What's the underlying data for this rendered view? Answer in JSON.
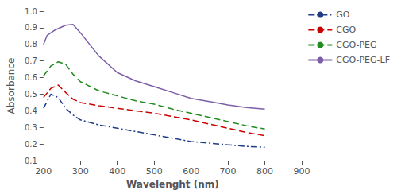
{
  "chart_data": {
    "type": "line",
    "xlabel": "Wavelenght (nm)",
    "ylabel": "Absorbance",
    "xlim": [
      200,
      900
    ],
    "ylim": [
      0.1,
      1.0
    ],
    "xticks": [
      200,
      300,
      400,
      500,
      600,
      700,
      800,
      900
    ],
    "yticks": [
      0.1,
      0.2,
      0.3,
      0.4,
      0.5,
      0.6,
      0.7,
      0.8,
      0.9,
      {
        "value": 1,
        "label": "1.0"
      }
    ],
    "grid": false,
    "legend": "upper right",
    "series": [
      {
        "name": "GO",
        "color": "#1f3c88",
        "line_style": "dashdot",
        "x": [
          200,
          220,
          240,
          260,
          280,
          300,
          350,
          400,
          450,
          500,
          550,
          600,
          650,
          700,
          750,
          800
        ],
        "values": [
          0.415,
          0.5,
          0.48,
          0.415,
          0.375,
          0.345,
          0.315,
          0.295,
          0.275,
          0.255,
          0.235,
          0.215,
          0.205,
          0.195,
          0.185,
          0.18
        ]
      },
      {
        "name": "CGO",
        "color": "#cc0000",
        "line_style": "dashed",
        "x": [
          200,
          220,
          240,
          260,
          280,
          300,
          350,
          400,
          450,
          500,
          550,
          600,
          650,
          700,
          750,
          800
        ],
        "values": [
          0.48,
          0.535,
          0.555,
          0.51,
          0.47,
          0.45,
          0.43,
          0.415,
          0.4,
          0.385,
          0.365,
          0.345,
          0.32,
          0.295,
          0.27,
          0.25
        ]
      },
      {
        "name": "CGO-PEG",
        "color": "#228B22",
        "line_style": "dashed",
        "x": [
          200,
          220,
          240,
          260,
          280,
          300,
          350,
          400,
          450,
          500,
          550,
          600,
          650,
          700,
          750,
          800
        ],
        "values": [
          0.61,
          0.67,
          0.695,
          0.68,
          0.62,
          0.575,
          0.52,
          0.49,
          0.46,
          0.44,
          0.41,
          0.385,
          0.36,
          0.335,
          0.31,
          0.29
        ]
      },
      {
        "name": "CGO-PEG-LF",
        "color": "#7b5ea7",
        "line_style": "solid",
        "x": [
          200,
          210,
          230,
          260,
          280,
          300,
          350,
          400,
          450,
          500,
          550,
          600,
          650,
          700,
          750,
          800
        ],
        "values": [
          0.8,
          0.855,
          0.885,
          0.915,
          0.92,
          0.87,
          0.73,
          0.63,
          0.58,
          0.545,
          0.51,
          0.475,
          0.455,
          0.435,
          0.42,
          0.41
        ]
      }
    ]
  }
}
